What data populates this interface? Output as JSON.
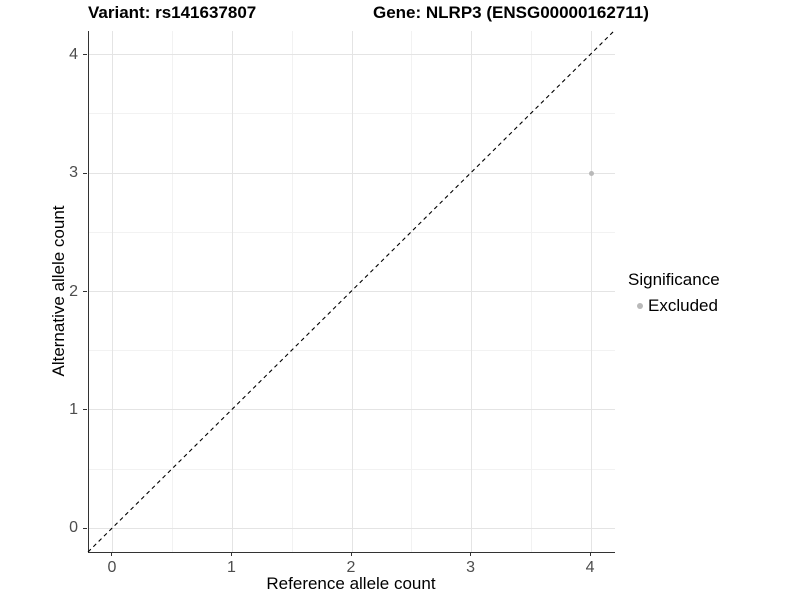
{
  "title": {
    "variant": "Variant: rs141637807",
    "gene": "Gene: NLRP3 (ENSG00000162711)"
  },
  "chart_data": {
    "type": "scatter",
    "xlabel": "Reference allele count",
    "ylabel": "Alternative allele count",
    "x_ticks": [
      0,
      1,
      2,
      3,
      4
    ],
    "y_ticks": [
      0,
      1,
      2,
      3,
      4
    ],
    "xlim": [
      -0.2,
      4.2
    ],
    "ylim": [
      -0.2,
      4.2
    ],
    "grid": "major+minor",
    "points": [
      {
        "x": 4,
        "y": 3,
        "series": "Excluded"
      }
    ],
    "identity_line": {
      "style": "dashed",
      "from": [
        -0.2,
        -0.2
      ],
      "to": [
        4.2,
        4.2
      ],
      "color": "#000000"
    },
    "legend": {
      "title": "Significance",
      "position": "right",
      "entries": [
        {
          "label": "Excluded",
          "color": "#b9b9b9"
        }
      ]
    },
    "colors": {
      "grid_major": "#e4e4e4",
      "grid_minor": "#f2f2f2",
      "axis_line": "#333333",
      "tick_label": "#4d4d4d"
    }
  }
}
